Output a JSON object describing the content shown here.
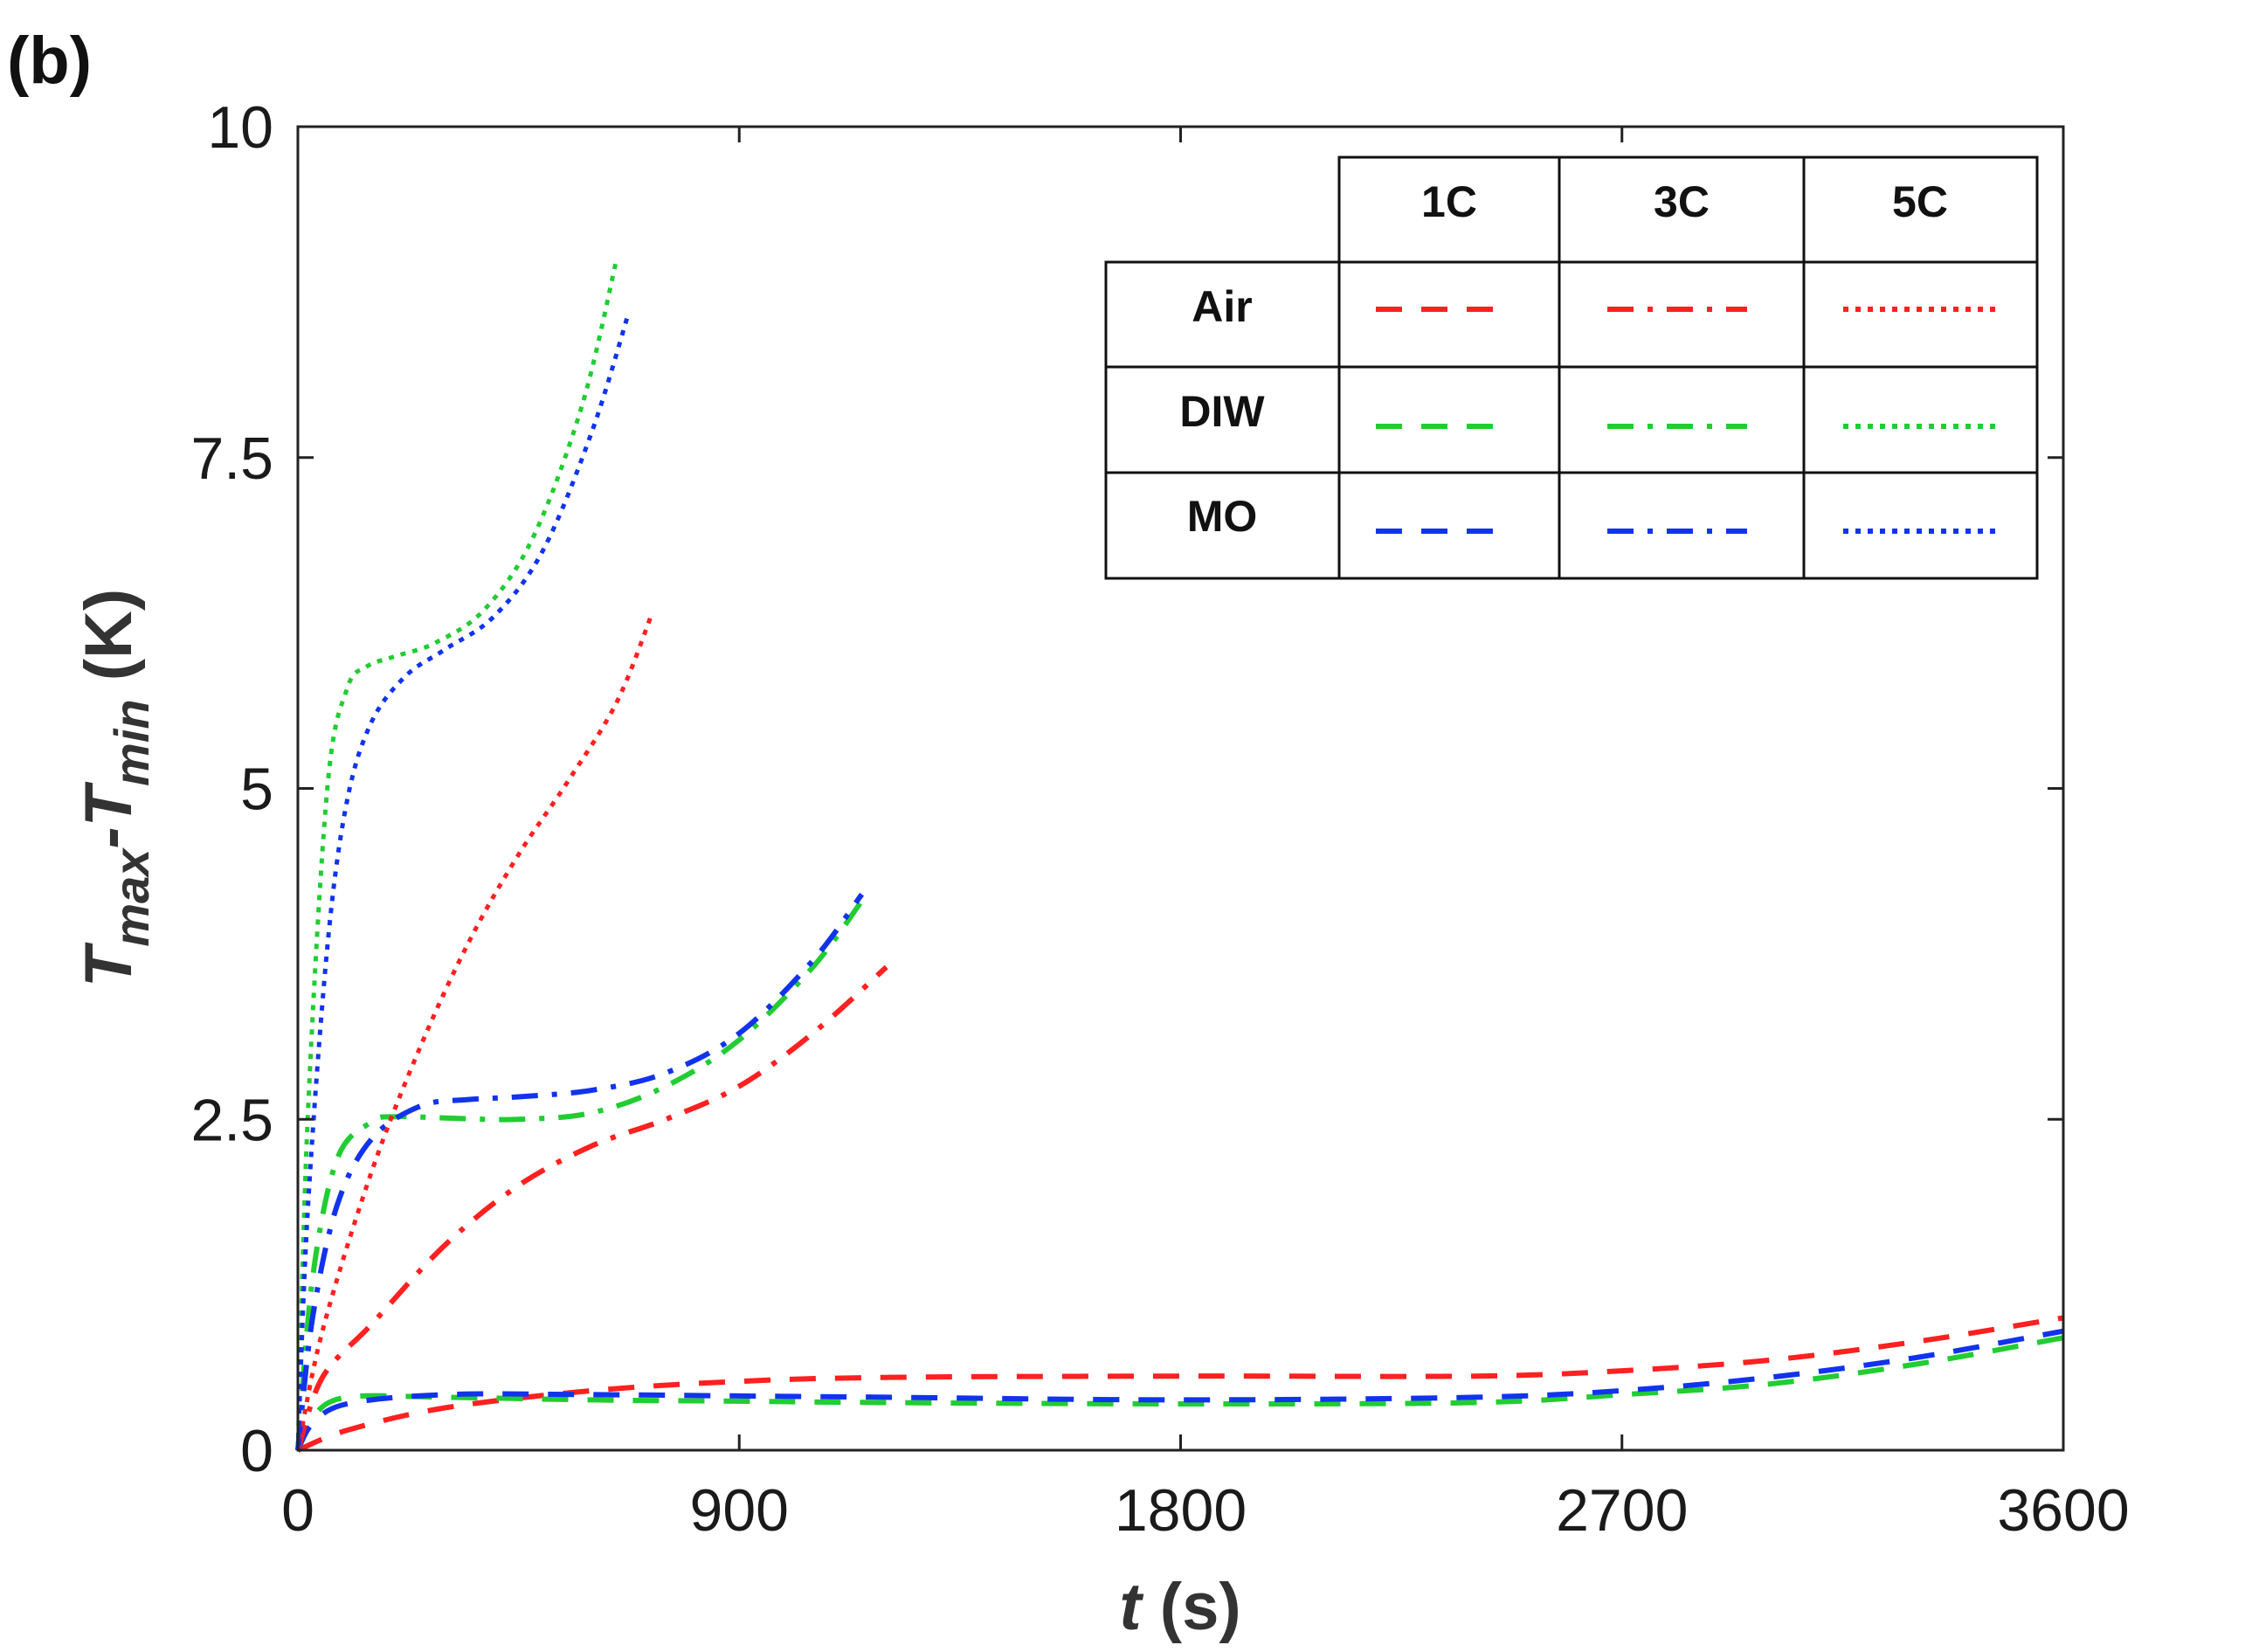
{
  "chart_data": {
    "type": "line",
    "panel_label": "(b)",
    "xlabel_var": "t",
    "xlabel_unit": " (s)",
    "ylabel_parts": [
      "T",
      "max",
      "-T",
      "min",
      " (K)"
    ],
    "xlim": [
      0,
      3600
    ],
    "ylim": [
      0,
      10
    ],
    "x_ticks": [
      0,
      900,
      1800,
      2700,
      3600
    ],
    "x_tick_labels": [
      "0",
      "900",
      "1800",
      "2700",
      "3600"
    ],
    "y_ticks": [
      0,
      2.5,
      5,
      7.5,
      10
    ],
    "y_tick_labels": [
      "0",
      "2.5",
      "5",
      "7.5",
      "10"
    ],
    "legend": {
      "columns": [
        "1C",
        "3C",
        "5C"
      ],
      "rows": [
        "Air",
        "DIW",
        "MO"
      ]
    },
    "colors": {
      "Air": "#ff2020",
      "DIW": "#22cc33",
      "MO": "#1133ee"
    },
    "series": [
      {
        "name": "Air 1C",
        "coolant": "Air",
        "rate": "1C",
        "style": "dash",
        "x": [
          0,
          100,
          300,
          600,
          900,
          1200,
          1800,
          2400,
          2700,
          3000,
          3300,
          3600
        ],
        "y": [
          0,
          0.15,
          0.32,
          0.45,
          0.52,
          0.55,
          0.56,
          0.56,
          0.6,
          0.68,
          0.82,
          1.0
        ]
      },
      {
        "name": "DIW 1C",
        "coolant": "DIW",
        "rate": "1C",
        "style": "dash",
        "x": [
          0,
          30,
          100,
          300,
          600,
          900,
          1200,
          1800,
          2400,
          2700,
          3000,
          3300,
          3600
        ],
        "y": [
          0,
          0.25,
          0.4,
          0.4,
          0.38,
          0.37,
          0.36,
          0.35,
          0.36,
          0.42,
          0.5,
          0.65,
          0.85
        ]
      },
      {
        "name": "MO 1C",
        "coolant": "MO",
        "rate": "1C",
        "style": "dash",
        "x": [
          0,
          30,
          100,
          300,
          600,
          900,
          1200,
          1800,
          2400,
          2700,
          3000,
          3300,
          3600
        ],
        "y": [
          0,
          0.2,
          0.35,
          0.42,
          0.42,
          0.41,
          0.4,
          0.38,
          0.4,
          0.45,
          0.55,
          0.7,
          0.9
        ]
      },
      {
        "name": "Air 3C",
        "coolant": "Air",
        "rate": "3C",
        "style": "dashdot",
        "x": [
          0,
          50,
          150,
          300,
          450,
          600,
          750,
          900,
          1050,
          1200
        ],
        "y": [
          0,
          0.55,
          0.95,
          1.55,
          2.0,
          2.3,
          2.5,
          2.75,
          3.15,
          3.65
        ]
      },
      {
        "name": "DIW 3C",
        "coolant": "DIW",
        "rate": "3C",
        "style": "dashdot",
        "x": [
          0,
          30,
          80,
          150,
          200,
          300,
          450,
          600,
          750,
          900,
          1050,
          1150
        ],
        "y": [
          0,
          1.3,
          2.2,
          2.48,
          2.52,
          2.51,
          2.5,
          2.55,
          2.75,
          3.1,
          3.65,
          4.15
        ]
      },
      {
        "name": "MO 3C",
        "coolant": "MO",
        "rate": "3C",
        "style": "dashdot",
        "x": [
          0,
          30,
          80,
          150,
          250,
          350,
          450,
          600,
          750,
          900,
          1050,
          1150
        ],
        "y": [
          0,
          1.0,
          1.85,
          2.35,
          2.6,
          2.65,
          2.67,
          2.72,
          2.85,
          3.15,
          3.7,
          4.2
        ]
      },
      {
        "name": "Air 5C",
        "coolant": "Air",
        "rate": "5C",
        "style": "dot",
        "x": [
          0,
          50,
          150,
          250,
          350,
          450,
          550,
          650,
          720
        ],
        "y": [
          0,
          0.9,
          2.1,
          3.05,
          3.85,
          4.5,
          5.05,
          5.65,
          6.3
        ]
      },
      {
        "name": "DIW 5C",
        "coolant": "DIW",
        "rate": "5C",
        "style": "dot",
        "x": [
          0,
          20,
          60,
          100,
          140,
          200,
          280,
          380,
          480,
          580,
          650
        ],
        "y": [
          0,
          2.5,
          5.0,
          5.75,
          5.92,
          6.0,
          6.1,
          6.35,
          6.9,
          7.9,
          9.0
        ]
      },
      {
        "name": "MO 5C",
        "coolant": "MO",
        "rate": "5C",
        "style": "dot",
        "x": [
          0,
          20,
          60,
          100,
          150,
          220,
          300,
          400,
          500,
          600,
          675
        ],
        "y": [
          0,
          1.8,
          3.8,
          4.9,
          5.5,
          5.85,
          6.05,
          6.3,
          6.8,
          7.7,
          8.6
        ]
      }
    ]
  }
}
